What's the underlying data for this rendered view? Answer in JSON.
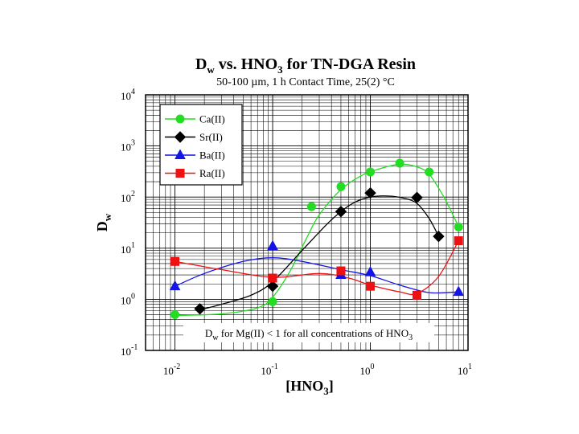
{
  "chart_data": {
    "type": "scatter",
    "title_main": "D",
    "title_sub_w": "w",
    "title_mid": " vs. HNO",
    "title_sub_3": "3",
    "title_end": " for TN-DGA Resin",
    "subtitle": "50-100 µm, 1 h Contact Time, 25(2) °C",
    "xlabel_main": "[HNO",
    "xlabel_sub": "3",
    "xlabel_end": "]",
    "ylabel_main": "D",
    "ylabel_sub": "w",
    "x_scale": "log",
    "y_scale": "log",
    "xlim": [
      0.005,
      10
    ],
    "ylim": [
      0.1,
      10000
    ],
    "x_ticks": [
      {
        "base": "10",
        "exp": "-2"
      },
      {
        "base": "10",
        "exp": "-1"
      },
      {
        "base": "10",
        "exp": "0"
      },
      {
        "base": "10",
        "exp": "1"
      }
    ],
    "y_ticks": [
      {
        "base": "10",
        "exp": "-1"
      },
      {
        "base": "10",
        "exp": "0"
      },
      {
        "base": "10",
        "exp": "1"
      },
      {
        "base": "10",
        "exp": "2"
      },
      {
        "base": "10",
        "exp": "3"
      },
      {
        "base": "10",
        "exp": "4"
      }
    ],
    "grid": true,
    "legend_position": "top-left",
    "note_main": "D",
    "note_sub_w": "w",
    "note_mid": " for Mg(II) < 1 for all concentrations of HNO",
    "note_sub_3": "3",
    "series": [
      {
        "name": "Ca(II)",
        "color": "#22dd22",
        "marker": "circle",
        "points": [
          [
            0.01,
            0.5
          ],
          [
            0.1,
            0.9
          ],
          [
            0.25,
            65
          ],
          [
            0.5,
            160
          ],
          [
            1,
            310
          ],
          [
            2,
            460
          ],
          [
            4,
            310
          ],
          [
            8,
            26
          ]
        ],
        "curve": [
          [
            0.01,
            0.48
          ],
          [
            0.03,
            0.52
          ],
          [
            0.07,
            0.68
          ],
          [
            0.1,
            1.1
          ],
          [
            0.15,
            3.5
          ],
          [
            0.22,
            15
          ],
          [
            0.3,
            45
          ],
          [
            0.5,
            140
          ],
          [
            0.8,
            260
          ],
          [
            1.2,
            350
          ],
          [
            2,
            440
          ],
          [
            3,
            390
          ],
          [
            4,
            280
          ],
          [
            5.5,
            110
          ],
          [
            7,
            45
          ],
          [
            8,
            26
          ]
        ]
      },
      {
        "name": "Sr(II)",
        "color": "#000000",
        "marker": "diamond",
        "points": [
          [
            0.018,
            0.65
          ],
          [
            0.1,
            1.8
          ],
          [
            0.5,
            52
          ],
          [
            1,
            120
          ],
          [
            3,
            98
          ],
          [
            5,
            17
          ]
        ],
        "curve": [
          [
            0.018,
            0.62
          ],
          [
            0.03,
            0.8
          ],
          [
            0.06,
            1.2
          ],
          [
            0.1,
            2.2
          ],
          [
            0.2,
            9
          ],
          [
            0.35,
            28
          ],
          [
            0.5,
            52
          ],
          [
            0.7,
            80
          ],
          [
            1,
            100
          ],
          [
            1.5,
            105
          ],
          [
            2.2,
            95
          ],
          [
            3,
            75
          ],
          [
            4,
            38
          ],
          [
            5,
            17
          ]
        ]
      },
      {
        "name": "Ba(II)",
        "color": "#1414e6",
        "marker": "triangle",
        "points": [
          [
            0.01,
            1.8
          ],
          [
            0.1,
            11
          ],
          [
            0.5,
            3
          ],
          [
            1,
            3.4
          ],
          [
            8,
            1.4
          ]
        ],
        "curve": [
          [
            0.01,
            1.8
          ],
          [
            0.02,
            3.2
          ],
          [
            0.05,
            5.5
          ],
          [
            0.1,
            6.5
          ],
          [
            0.2,
            5.5
          ],
          [
            0.5,
            3.8
          ],
          [
            1,
            2.9
          ],
          [
            2,
            1.9
          ],
          [
            4,
            1.35
          ],
          [
            8,
            1.4
          ]
        ]
      },
      {
        "name": "Ra(II)",
        "color": "#ee1111",
        "marker": "square",
        "points": [
          [
            0.01,
            5.5
          ],
          [
            0.1,
            2.6
          ],
          [
            0.5,
            3.6
          ],
          [
            1,
            1.8
          ],
          [
            3,
            1.2
          ],
          [
            8,
            14
          ]
        ],
        "curve": [
          [
            0.01,
            5.5
          ],
          [
            0.03,
            3.8
          ],
          [
            0.1,
            2.7
          ],
          [
            0.3,
            3.2
          ],
          [
            0.6,
            2.6
          ],
          [
            1,
            1.9
          ],
          [
            2,
            1.4
          ],
          [
            3,
            1.3
          ],
          [
            5,
            2.8
          ],
          [
            8,
            14
          ]
        ]
      }
    ]
  }
}
